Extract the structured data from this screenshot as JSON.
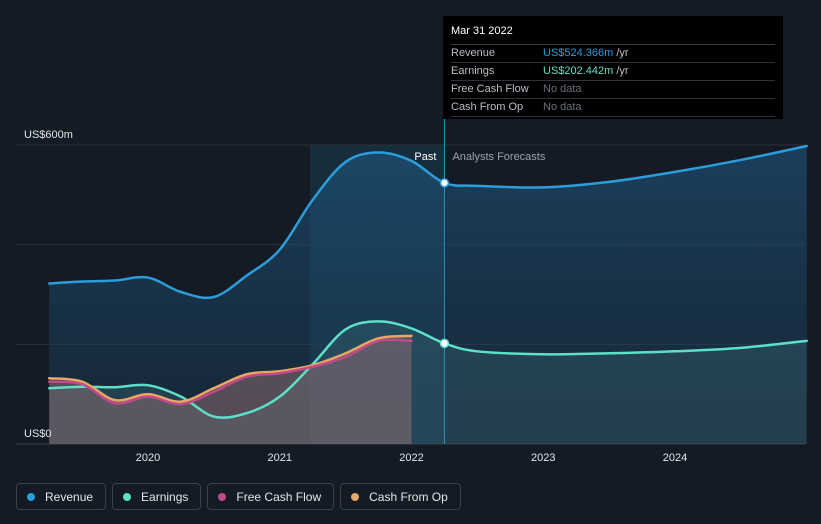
{
  "tooltip": {
    "date": "Mar 31 2022",
    "rows": [
      {
        "label": "Revenue",
        "value": "US$524.366m",
        "unit": "/yr",
        "color": "#2d9cdb"
      },
      {
        "label": "Earnings",
        "value": "US$202.442m",
        "unit": "/yr",
        "color": "#5ce0c8"
      },
      {
        "label": "Free Cash Flow",
        "value": "No data",
        "unit": "",
        "color": "#6a7079"
      },
      {
        "label": "Cash From Op",
        "value": "No data",
        "unit": "",
        "color": "#6a7079"
      }
    ]
  },
  "labels": {
    "past": "Past",
    "forecast": "Analysts Forecasts"
  },
  "legend": [
    {
      "label": "Revenue",
      "color": "#2d9cdb"
    },
    {
      "label": "Earnings",
      "color": "#5ce0c8"
    },
    {
      "label": "Free Cash Flow",
      "color": "#c2498a"
    },
    {
      "label": "Cash From Op",
      "color": "#e8a765"
    }
  ],
  "chart_data": {
    "type": "line",
    "title": "",
    "xlabel": "",
    "ylabel": "",
    "y_unit": "US$m",
    "ylim": [
      0,
      600
    ],
    "y_ticks": [
      {
        "value": 600,
        "label": "US$600m"
      },
      {
        "value": 0,
        "label": "US$0"
      }
    ],
    "x_ticks": [
      {
        "value": 2020,
        "label": "2020"
      },
      {
        "value": 2021,
        "label": "2021"
      },
      {
        "value": 2022,
        "label": "2022"
      },
      {
        "value": 2023,
        "label": "2023"
      },
      {
        "value": 2024,
        "label": "2024"
      }
    ],
    "xlim": [
      2019.0,
      2025.0
    ],
    "past_start": 2021.23,
    "past_end": 2022.25,
    "highlight_x": 2022.25,
    "series": [
      {
        "name": "Revenue",
        "color": "#2d9cdb",
        "x": [
          2019.25,
          2019.5,
          2019.75,
          2020.0,
          2020.25,
          2020.5,
          2020.75,
          2021.0,
          2021.25,
          2021.5,
          2021.75,
          2022.0,
          2022.25,
          2022.5,
          2023.0,
          2023.5,
          2024.0,
          2024.5,
          2025.0
        ],
        "y": [
          322,
          326,
          328,
          334,
          305,
          295,
          338,
          390,
          490,
          566,
          585,
          568,
          524,
          518,
          515,
          526,
          546,
          570,
          598
        ]
      },
      {
        "name": "Earnings",
        "color": "#5ce0c8",
        "x": [
          2019.25,
          2019.5,
          2019.75,
          2020.0,
          2020.25,
          2020.5,
          2020.75,
          2021.0,
          2021.25,
          2021.5,
          2021.75,
          2022.0,
          2022.25,
          2022.5,
          2023.0,
          2023.5,
          2024.0,
          2024.5,
          2025.0
        ],
        "y": [
          112,
          115,
          114,
          118,
          95,
          55,
          62,
          95,
          160,
          230,
          246,
          232,
          202,
          186,
          180,
          182,
          186,
          193,
          207
        ]
      },
      {
        "name": "Free Cash Flow",
        "color": "#c2498a",
        "x": [
          2019.25,
          2019.5,
          2019.75,
          2020.0,
          2020.25,
          2020.5,
          2020.75,
          2021.0,
          2021.25,
          2021.5,
          2021.75,
          2022.0
        ],
        "y": [
          125,
          120,
          82,
          95,
          80,
          105,
          135,
          142,
          155,
          175,
          207,
          207
        ]
      },
      {
        "name": "Cash From Op",
        "color": "#e8a765",
        "x": [
          2019.25,
          2019.5,
          2019.75,
          2020.0,
          2020.25,
          2020.5,
          2020.75,
          2021.0,
          2021.25,
          2021.5,
          2021.75,
          2022.0
        ],
        "y": [
          132,
          125,
          88,
          100,
          85,
          112,
          140,
          146,
          158,
          182,
          212,
          217
        ]
      }
    ]
  }
}
